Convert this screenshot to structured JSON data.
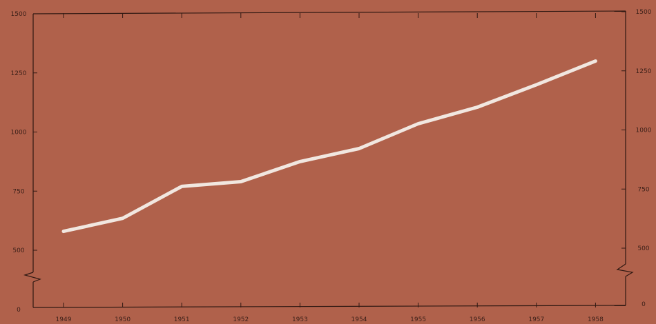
{
  "chart_data": {
    "type": "line",
    "x": [
      "1949",
      "1950",
      "1951",
      "1952",
      "1953",
      "1954",
      "1955",
      "1956",
      "1957",
      "1958"
    ],
    "series": [
      {
        "values": [
          580,
          635,
          770,
          790,
          875,
          930,
          1035,
          1105,
          1200,
          1300
        ]
      }
    ],
    "y_ticks": [
      0,
      500,
      750,
      1000,
      1250,
      1500
    ],
    "y_ticks_right": [
      0,
      500,
      750,
      1000,
      1250,
      1500
    ],
    "ylim": [
      0,
      1500
    ],
    "axis_break": "between 0 and 500 on both y axes",
    "grid": false,
    "colors": {
      "background": "#b0614b",
      "line": "#f1e7e0",
      "axis": "#2f1812"
    }
  }
}
